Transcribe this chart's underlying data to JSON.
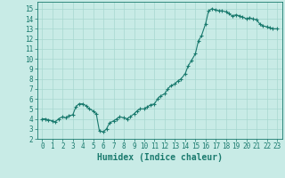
{
  "x": [
    0,
    0.3,
    0.6,
    1.0,
    1.3,
    1.6,
    2.0,
    2.3,
    2.6,
    3.0,
    3.3,
    3.6,
    4.0,
    4.3,
    4.6,
    5.0,
    5.3,
    5.6,
    6.0,
    6.3,
    6.6,
    7.0,
    7.3,
    7.6,
    8.0,
    8.3,
    8.6,
    9.0,
    9.3,
    9.6,
    10.0,
    10.3,
    10.6,
    11.0,
    11.3,
    11.6,
    12.0,
    12.3,
    12.6,
    13.0,
    13.3,
    13.6,
    14.0,
    14.3,
    14.6,
    15.0,
    15.3,
    15.6,
    16.0,
    16.3,
    16.6,
    17.0,
    17.3,
    17.6,
    18.0,
    18.3,
    18.6,
    19.0,
    19.3,
    19.6,
    20.0,
    20.3,
    20.6,
    21.0,
    21.3,
    21.6,
    22.0,
    22.3,
    22.6,
    23.0
  ],
  "y": [
    4.0,
    4.0,
    3.9,
    3.8,
    3.7,
    4.0,
    4.2,
    4.1,
    4.3,
    4.4,
    5.2,
    5.5,
    5.5,
    5.3,
    5.0,
    4.8,
    4.5,
    2.8,
    2.7,
    3.0,
    3.6,
    3.8,
    4.0,
    4.2,
    4.1,
    4.0,
    4.2,
    4.5,
    4.8,
    5.0,
    5.0,
    5.2,
    5.4,
    5.5,
    6.0,
    6.3,
    6.5,
    7.0,
    7.3,
    7.5,
    7.8,
    8.0,
    8.5,
    9.3,
    9.8,
    10.5,
    11.8,
    12.3,
    13.5,
    14.8,
    15.0,
    14.9,
    14.8,
    14.8,
    14.7,
    14.5,
    14.3,
    14.4,
    14.3,
    14.2,
    14.0,
    14.1,
    14.0,
    13.9,
    13.5,
    13.3,
    13.2,
    13.1,
    13.0,
    13.0
  ],
  "marker": "+",
  "line_color": "#1a7a6e",
  "marker_color": "#1a7a6e",
  "bg_color": "#c8ebe6",
  "grid_color": "#a8d8d0",
  "axis_color": "#1a7a6e",
  "tick_color": "#1a7a6e",
  "xlabel": "Humidex (Indice chaleur)",
  "xlabel_fontsize": 7,
  "ylabel_ticks": [
    2,
    3,
    4,
    5,
    6,
    7,
    8,
    9,
    10,
    11,
    12,
    13,
    14,
    15
  ],
  "xlim": [
    -0.5,
    23.5
  ],
  "ylim": [
    2.0,
    15.7
  ],
  "xticks": [
    0,
    1,
    2,
    3,
    4,
    5,
    6,
    7,
    8,
    9,
    10,
    11,
    12,
    13,
    14,
    15,
    16,
    17,
    18,
    19,
    20,
    21,
    22,
    23
  ],
  "tick_fontsize": 5.5,
  "linewidth": 0.8,
  "markersize": 3.0
}
